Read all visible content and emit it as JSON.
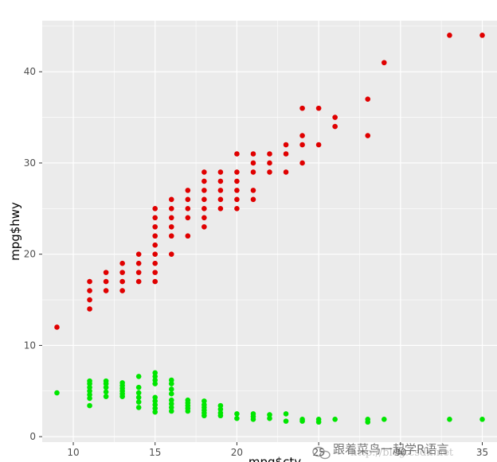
{
  "chart_data": {
    "type": "scatter",
    "title": "",
    "xlabel": "mpg$cty",
    "ylabel": "mpg$hwy",
    "xlim": [
      8.1,
      35.9
    ],
    "ylim": [
      -0.6,
      45.6
    ],
    "xticks": [
      10,
      15,
      20,
      25,
      30,
      35
    ],
    "yticks": [
      0,
      10,
      20,
      30,
      40
    ],
    "grid": true,
    "series": [
      {
        "color": "#e00000",
        "points": [
          [
            9,
            12
          ],
          [
            11,
            14
          ],
          [
            11,
            15
          ],
          [
            11,
            16
          ],
          [
            11,
            17
          ],
          [
            12,
            16
          ],
          [
            12,
            17
          ],
          [
            12,
            18
          ],
          [
            13,
            16
          ],
          [
            13,
            17
          ],
          [
            13,
            18
          ],
          [
            13,
            19
          ],
          [
            14,
            17
          ],
          [
            14,
            18
          ],
          [
            14,
            19
          ],
          [
            14,
            20
          ],
          [
            15,
            17
          ],
          [
            15,
            18
          ],
          [
            15,
            19
          ],
          [
            15,
            20
          ],
          [
            15,
            21
          ],
          [
            15,
            22
          ],
          [
            15,
            23
          ],
          [
            15,
            24
          ],
          [
            15,
            25
          ],
          [
            16,
            20
          ],
          [
            16,
            22
          ],
          [
            16,
            23
          ],
          [
            16,
            24
          ],
          [
            16,
            25
          ],
          [
            16,
            26
          ],
          [
            17,
            22
          ],
          [
            17,
            24
          ],
          [
            17,
            25
          ],
          [
            17,
            26
          ],
          [
            17,
            27
          ],
          [
            18,
            23
          ],
          [
            18,
            24
          ],
          [
            18,
            25
          ],
          [
            18,
            26
          ],
          [
            18,
            27
          ],
          [
            18,
            28
          ],
          [
            18,
            29
          ],
          [
            19,
            25
          ],
          [
            19,
            26
          ],
          [
            19,
            27
          ],
          [
            19,
            28
          ],
          [
            19,
            29
          ],
          [
            20,
            25
          ],
          [
            20,
            26
          ],
          [
            20,
            27
          ],
          [
            20,
            28
          ],
          [
            20,
            29
          ],
          [
            20,
            31
          ],
          [
            21,
            26
          ],
          [
            21,
            27
          ],
          [
            21,
            29
          ],
          [
            21,
            30
          ],
          [
            21,
            31
          ],
          [
            22,
            29
          ],
          [
            22,
            30
          ],
          [
            22,
            31
          ],
          [
            23,
            29
          ],
          [
            23,
            31
          ],
          [
            23,
            32
          ],
          [
            24,
            30
          ],
          [
            24,
            32
          ],
          [
            24,
            33
          ],
          [
            24,
            36
          ],
          [
            25,
            32
          ],
          [
            25,
            36
          ],
          [
            26,
            34
          ],
          [
            26,
            35
          ],
          [
            28,
            33
          ],
          [
            28,
            37
          ],
          [
            29,
            41
          ],
          [
            33,
            44
          ],
          [
            35,
            44
          ]
        ]
      },
      {
        "color": "#00e600",
        "points": [
          [
            9,
            4.8
          ],
          [
            11,
            3.4
          ],
          [
            11,
            4.2
          ],
          [
            11,
            4.6
          ],
          [
            11,
            5.0
          ],
          [
            11,
            5.4
          ],
          [
            11,
            5.8
          ],
          [
            11,
            6.1
          ],
          [
            12,
            4.4
          ],
          [
            12,
            4.9
          ],
          [
            12,
            5.4
          ],
          [
            12,
            5.8
          ],
          [
            12,
            6.1
          ],
          [
            13,
            4.4
          ],
          [
            13,
            4.7
          ],
          [
            13,
            5.0
          ],
          [
            13,
            5.3
          ],
          [
            13,
            5.6
          ],
          [
            13,
            5.9
          ],
          [
            14,
            3.2
          ],
          [
            14,
            3.8
          ],
          [
            14,
            4.3
          ],
          [
            14,
            4.8
          ],
          [
            14,
            5.4
          ],
          [
            14,
            6.6
          ],
          [
            15,
            2.7
          ],
          [
            15,
            3.1
          ],
          [
            15,
            3.5
          ],
          [
            15,
            3.9
          ],
          [
            15,
            4.3
          ],
          [
            15,
            5.8
          ],
          [
            15,
            6.2
          ],
          [
            15,
            6.6
          ],
          [
            15,
            7.0
          ],
          [
            16,
            2.8
          ],
          [
            16,
            3.2
          ],
          [
            16,
            3.6
          ],
          [
            16,
            4.0
          ],
          [
            16,
            4.7
          ],
          [
            16,
            5.2
          ],
          [
            16,
            5.8
          ],
          [
            16,
            6.2
          ],
          [
            17,
            2.8
          ],
          [
            17,
            3.1
          ],
          [
            17,
            3.4
          ],
          [
            17,
            3.7
          ],
          [
            17,
            4.0
          ],
          [
            18,
            2.3
          ],
          [
            18,
            2.6
          ],
          [
            18,
            2.9
          ],
          [
            18,
            3.2
          ],
          [
            18,
            3.5
          ],
          [
            18,
            3.9
          ],
          [
            19,
            2.3
          ],
          [
            19,
            2.6
          ],
          [
            19,
            3.0
          ],
          [
            19,
            3.4
          ],
          [
            20,
            2.0
          ],
          [
            20,
            2.5
          ],
          [
            21,
            1.9
          ],
          [
            21,
            2.2
          ],
          [
            21,
            2.5
          ],
          [
            22,
            2.0
          ],
          [
            22,
            2.4
          ],
          [
            23,
            1.7
          ],
          [
            23,
            2.5
          ],
          [
            24,
            1.7
          ],
          [
            24,
            1.9
          ],
          [
            25,
            1.6
          ],
          [
            25,
            1.9
          ],
          [
            26,
            1.9
          ],
          [
            28,
            1.6
          ],
          [
            28,
            1.9
          ],
          [
            29,
            1.9
          ],
          [
            33,
            1.9
          ],
          [
            35,
            1.9
          ]
        ]
      }
    ]
  },
  "watermark": {
    "text": "跟着菜鸟一起学R语言",
    "url": "http://blog.csdn.net"
  },
  "colors": {
    "panel_background": "#ebebeb",
    "grid": "#ffffff",
    "tick_label": "#4d4d4d"
  }
}
